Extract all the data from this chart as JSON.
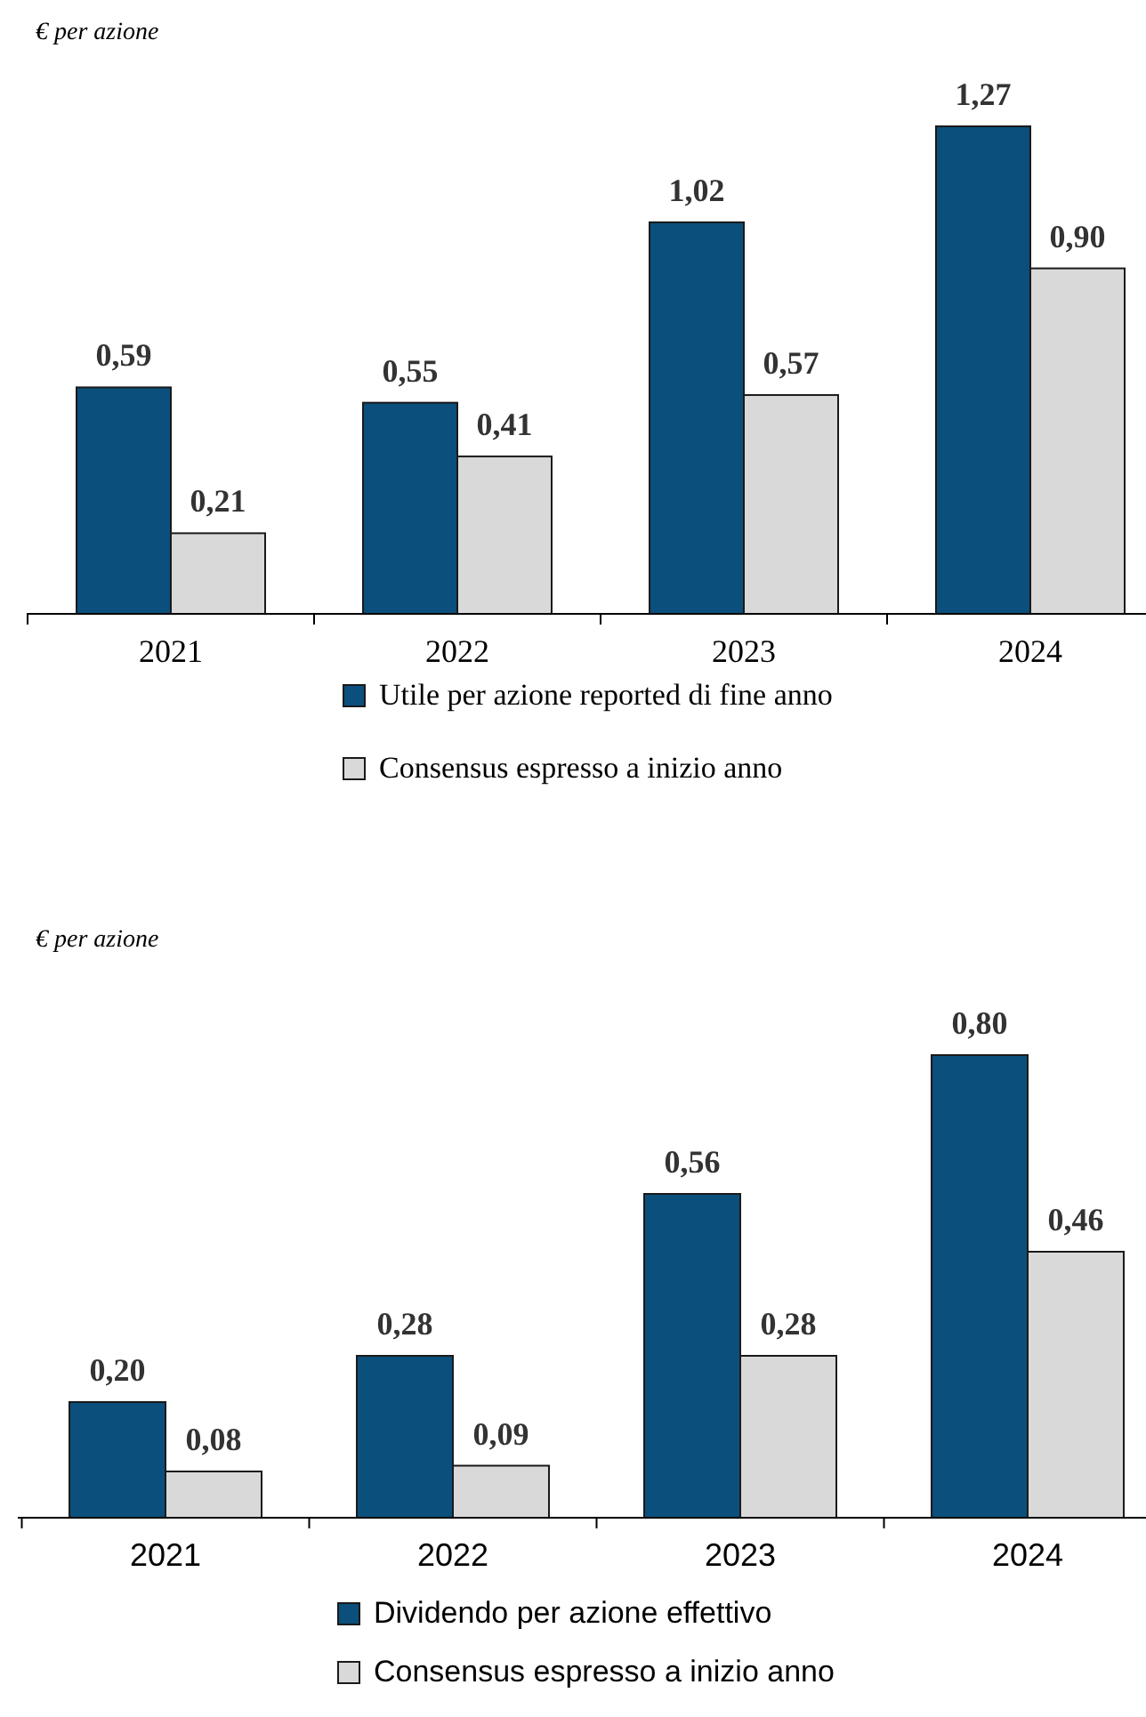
{
  "chart_data": [
    {
      "type": "bar",
      "ylabel": "€ per azione",
      "categories": [
        "2021",
        "2022",
        "2023",
        "2024"
      ],
      "legend": "bottom",
      "series": [
        {
          "name": "Utile per azione reported di fine anno",
          "color": "#0b4f7c",
          "values": [
            0.59,
            0.55,
            1.02,
            1.27
          ],
          "value_labels": [
            "0,59",
            "0,55",
            "1,02",
            "1,27"
          ]
        },
        {
          "name": "Consensus espresso a inizio anno",
          "color": "#d9d9d9",
          "values": [
            0.21,
            0.41,
            0.57,
            0.9
          ],
          "value_labels": [
            "0,21",
            "0,41",
            "0,57",
            "0,90"
          ]
        }
      ]
    },
    {
      "type": "bar",
      "ylabel": "€ per azione",
      "categories": [
        "2021",
        "2022",
        "2023",
        "2024"
      ],
      "legend": "bottom",
      "series": [
        {
          "name": "Dividendo per azione effettivo",
          "color": "#0b4f7c",
          "values": [
            0.2,
            0.28,
            0.56,
            0.8
          ],
          "value_labels": [
            "0,20",
            "0,28",
            "0,56",
            "0,80"
          ]
        },
        {
          "name": "Consensus espresso a inizio anno",
          "color": "#d9d9d9",
          "values": [
            0.08,
            0.09,
            0.28,
            0.46
          ],
          "value_labels": [
            "0,08",
            "0,09",
            "0,28",
            "0,46"
          ]
        }
      ]
    }
  ]
}
